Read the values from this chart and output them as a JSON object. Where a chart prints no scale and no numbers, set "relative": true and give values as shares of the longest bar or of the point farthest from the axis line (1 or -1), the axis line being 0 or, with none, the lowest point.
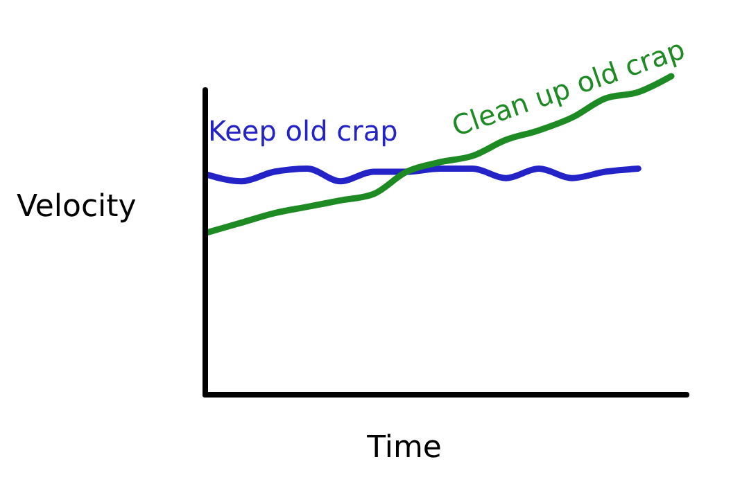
{
  "chart_data": {
    "type": "line",
    "xlabel": "Time",
    "ylabel": "Velocity",
    "relative": true,
    "categories": [
      null,
      null,
      null,
      null,
      null,
      null,
      null,
      null,
      null,
      null,
      null,
      null,
      null,
      null,
      null
    ],
    "series": [
      {
        "name": "Keep old crap",
        "color": "#2323c8",
        "values": [
          0.69,
          0.67,
          0.7,
          0.71,
          0.67,
          0.7,
          0.7,
          0.71,
          0.71,
          0.68,
          0.71,
          0.68,
          0.7,
          0.71,
          null
        ]
      },
      {
        "name": "Clean up old crap",
        "color": "#1e8a23",
        "values": [
          0.51,
          0.54,
          0.57,
          0.59,
          0.61,
          0.63,
          0.7,
          0.73,
          0.75,
          0.8,
          0.83,
          0.87,
          0.93,
          0.95,
          1
        ]
      }
    ]
  }
}
